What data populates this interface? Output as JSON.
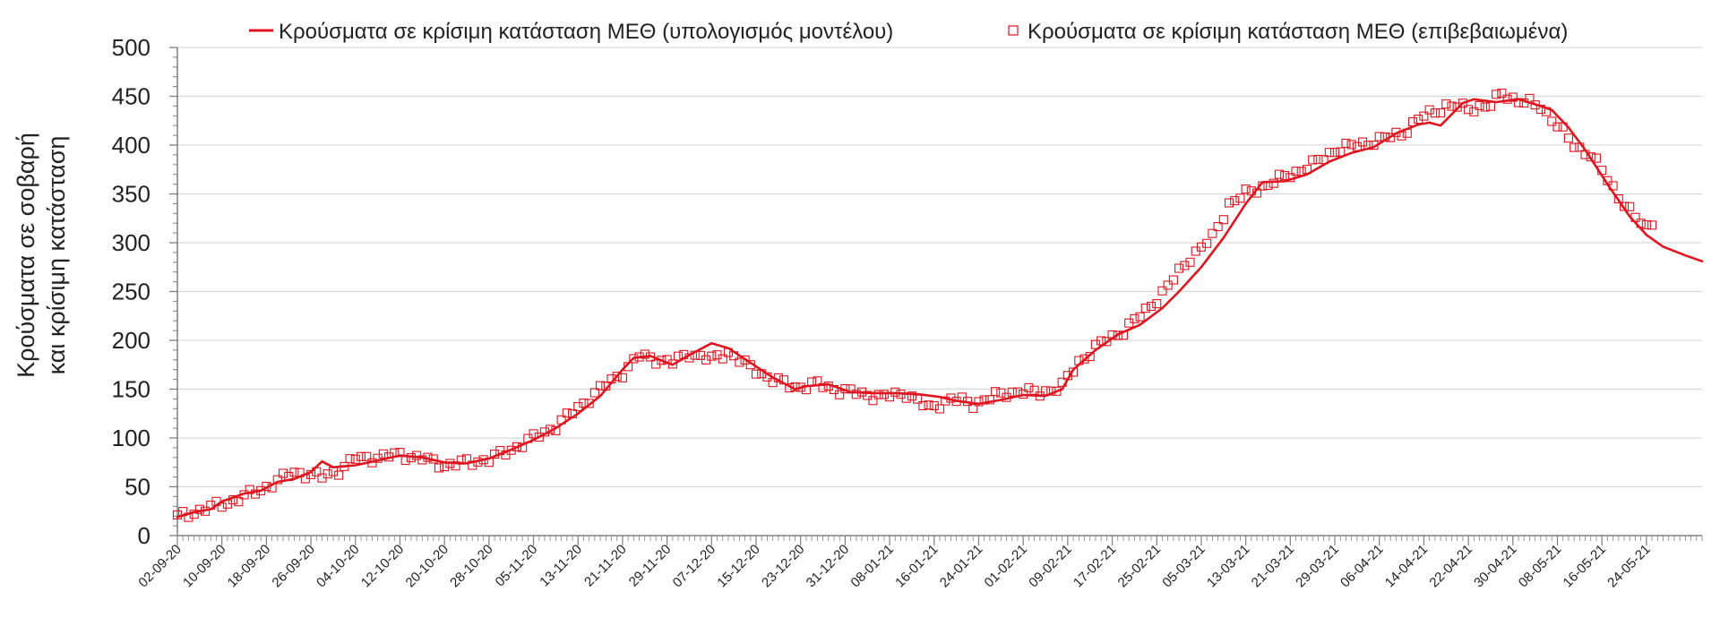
{
  "chart_data": {
    "type": "line",
    "title": "",
    "ylabel_lines": [
      "Κρούσματα σε σοβαρή",
      "και κρίσιμη κατάσταση"
    ],
    "xlabel": "",
    "ylim": [
      0,
      500
    ],
    "yticks": [
      0,
      50,
      100,
      150,
      200,
      250,
      300,
      350,
      400,
      450,
      500
    ],
    "x_start": "2020-09-02",
    "x_end": "2021-06-03",
    "xtick_labels": [
      "02-09-20",
      "10-09-20",
      "18-09-20",
      "26-09-20",
      "04-10-20",
      "12-10-20",
      "20-10-20",
      "28-10-20",
      "05-11-20",
      "13-11-20",
      "21-11-20",
      "29-11-20",
      "07-12-20",
      "15-12-20",
      "23-12-20",
      "31-12-20",
      "08-01-21",
      "16-01-21",
      "24-01-21",
      "01-02-21",
      "09-02-21",
      "17-02-21",
      "25-02-21",
      "05-03-21",
      "13-03-21",
      "21-03-21",
      "29-03-21",
      "06-04-21",
      "14-04-21",
      "22-04-21",
      "30-04-21",
      "08-05-21",
      "16-05-21",
      "24-05-21"
    ],
    "grid": "horizontal",
    "legend_position": "top",
    "colors": {
      "model": "#e0141e",
      "observed": "#e0141e",
      "grid": "#d9d9d9",
      "axis": "#808080"
    },
    "series": [
      {
        "name": "Κρούσματα σε κρίσιμη κατάσταση ΜΕΘ (υπολογισμός μοντέλου)",
        "style": "line",
        "points": [
          [
            "2020-09-02",
            19
          ],
          [
            "2020-09-05",
            24
          ],
          [
            "2020-09-08",
            27
          ],
          [
            "2020-09-10",
            35
          ],
          [
            "2020-09-14",
            43
          ],
          [
            "2020-09-17",
            46
          ],
          [
            "2020-09-20",
            55
          ],
          [
            "2020-09-23",
            58
          ],
          [
            "2020-09-26",
            65
          ],
          [
            "2020-09-28",
            76
          ],
          [
            "2020-09-30",
            70
          ],
          [
            "2020-10-04",
            72
          ],
          [
            "2020-10-08",
            77
          ],
          [
            "2020-10-12",
            82
          ],
          [
            "2020-10-16",
            80
          ],
          [
            "2020-10-20",
            75
          ],
          [
            "2020-10-24",
            74
          ],
          [
            "2020-10-28",
            79
          ],
          [
            "2020-11-01",
            88
          ],
          [
            "2020-11-05",
            98
          ],
          [
            "2020-11-09",
            110
          ],
          [
            "2020-11-13",
            125
          ],
          [
            "2020-11-17",
            143
          ],
          [
            "2020-11-21",
            170
          ],
          [
            "2020-11-23",
            182
          ],
          [
            "2020-11-26",
            184
          ],
          [
            "2020-11-30",
            175
          ],
          [
            "2020-12-03",
            185
          ],
          [
            "2020-12-07",
            197
          ],
          [
            "2020-12-10",
            192
          ],
          [
            "2020-12-14",
            177
          ],
          [
            "2020-12-18",
            162
          ],
          [
            "2020-12-22",
            150
          ],
          [
            "2020-12-24",
            153
          ],
          [
            "2020-12-28",
            155
          ],
          [
            "2021-01-01",
            147
          ],
          [
            "2021-01-05",
            146
          ],
          [
            "2021-01-09",
            146
          ],
          [
            "2021-01-13",
            145
          ],
          [
            "2021-01-17",
            142
          ],
          [
            "2021-01-20",
            138
          ],
          [
            "2021-01-24",
            135
          ],
          [
            "2021-01-28",
            139
          ],
          [
            "2021-02-01",
            144
          ],
          [
            "2021-02-05",
            143
          ],
          [
            "2021-02-08",
            150
          ],
          [
            "2021-02-10",
            170
          ],
          [
            "2021-02-14",
            190
          ],
          [
            "2021-02-18",
            206
          ],
          [
            "2021-02-22",
            216
          ],
          [
            "2021-02-26",
            233
          ],
          [
            "2021-03-01",
            250
          ],
          [
            "2021-03-05",
            275
          ],
          [
            "2021-03-09",
            305
          ],
          [
            "2021-03-13",
            340
          ],
          [
            "2021-03-16",
            362
          ],
          [
            "2021-03-20",
            363
          ],
          [
            "2021-03-24",
            370
          ],
          [
            "2021-03-28",
            383
          ],
          [
            "2021-04-01",
            392
          ],
          [
            "2021-04-05",
            398
          ],
          [
            "2021-04-09",
            412
          ],
          [
            "2021-04-13",
            421
          ],
          [
            "2021-04-15",
            423
          ],
          [
            "2021-04-17",
            420
          ],
          [
            "2021-04-21",
            443
          ],
          [
            "2021-04-23",
            447
          ],
          [
            "2021-04-27",
            444
          ],
          [
            "2021-05-01",
            447
          ],
          [
            "2021-05-05",
            440
          ],
          [
            "2021-05-07",
            436
          ],
          [
            "2021-05-10",
            418
          ],
          [
            "2021-05-13",
            395
          ],
          [
            "2021-05-17",
            360
          ],
          [
            "2021-05-21",
            327
          ],
          [
            "2021-05-24",
            308
          ],
          [
            "2021-05-27",
            296
          ],
          [
            "2021-05-31",
            287
          ],
          [
            "2021-06-03",
            281
          ]
        ]
      },
      {
        "name": "Κρούσματα σε κρίσιμη κατάσταση ΜΕΘ (επιβεβαιωμένα)",
        "style": "marker",
        "points": [
          [
            "2020-09-02",
            19
          ],
          [
            "2020-09-05",
            24
          ],
          [
            "2020-09-08",
            29
          ],
          [
            "2020-09-10",
            32
          ],
          [
            "2020-09-14",
            40
          ],
          [
            "2020-09-17",
            47
          ],
          [
            "2020-09-20",
            56
          ],
          [
            "2020-09-23",
            65
          ],
          [
            "2020-09-26",
            62
          ],
          [
            "2020-09-28",
            60
          ],
          [
            "2020-10-01",
            67
          ],
          [
            "2020-10-04",
            79
          ],
          [
            "2020-10-08",
            80
          ],
          [
            "2020-10-12",
            83
          ],
          [
            "2020-10-16",
            79
          ],
          [
            "2020-10-20",
            72
          ],
          [
            "2020-10-24",
            75
          ],
          [
            "2020-10-28",
            78
          ],
          [
            "2020-11-01",
            88
          ],
          [
            "2020-11-05",
            100
          ],
          [
            "2020-11-09",
            112
          ],
          [
            "2020-11-13",
            131
          ],
          [
            "2020-11-17",
            150
          ],
          [
            "2020-11-21",
            167
          ],
          [
            "2020-11-24",
            184
          ],
          [
            "2020-11-27",
            181
          ],
          [
            "2020-11-30",
            177
          ],
          [
            "2020-12-03",
            187
          ],
          [
            "2020-12-07",
            180
          ],
          [
            "2020-12-10",
            188
          ],
          [
            "2020-12-14",
            172
          ],
          [
            "2020-12-18",
            160
          ],
          [
            "2020-12-22",
            152
          ],
          [
            "2020-12-26",
            155
          ],
          [
            "2020-12-30",
            149
          ],
          [
            "2021-01-03",
            145
          ],
          [
            "2021-01-07",
            142
          ],
          [
            "2021-01-11",
            146
          ],
          [
            "2021-01-15",
            130
          ],
          [
            "2021-01-19",
            140
          ],
          [
            "2021-01-23",
            135
          ],
          [
            "2021-01-27",
            143
          ],
          [
            "2021-01-31",
            148
          ],
          [
            "2021-02-04",
            146
          ],
          [
            "2021-02-08",
            153
          ],
          [
            "2021-02-11",
            178
          ],
          [
            "2021-02-15",
            197
          ],
          [
            "2021-02-19",
            210
          ],
          [
            "2021-02-23",
            230
          ],
          [
            "2021-02-27",
            255
          ],
          [
            "2021-03-03",
            285
          ],
          [
            "2021-03-07",
            305
          ],
          [
            "2021-03-10",
            340
          ],
          [
            "2021-03-13",
            350
          ],
          [
            "2021-03-17",
            360
          ],
          [
            "2021-03-21",
            370
          ],
          [
            "2021-03-25",
            380
          ],
          [
            "2021-03-29",
            395
          ],
          [
            "2021-04-02",
            400
          ],
          [
            "2021-04-06",
            405
          ],
          [
            "2021-04-10",
            412
          ],
          [
            "2021-04-14",
            430
          ],
          [
            "2021-04-18",
            440
          ],
          [
            "2021-04-22",
            438
          ],
          [
            "2021-04-26",
            440
          ],
          [
            "2021-04-28",
            454
          ],
          [
            "2021-05-01",
            445
          ],
          [
            "2021-05-05",
            440
          ],
          [
            "2021-05-08",
            420
          ],
          [
            "2021-05-11",
            400
          ],
          [
            "2021-05-14",
            390
          ],
          [
            "2021-05-17",
            365
          ],
          [
            "2021-05-20",
            340
          ],
          [
            "2021-05-22",
            325
          ],
          [
            "2021-05-24",
            316
          ],
          [
            "2021-05-25",
            318
          ]
        ]
      }
    ]
  }
}
